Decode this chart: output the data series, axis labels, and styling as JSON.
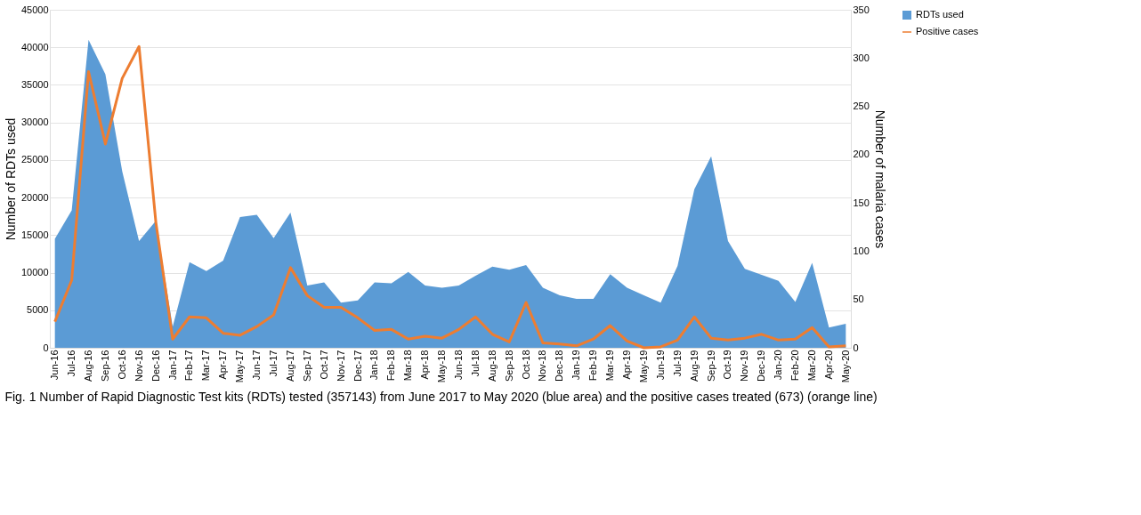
{
  "chart_data": {
    "type": "area",
    "ylabel": "Number of  RDTs used",
    "y2label": "Number of malaria cases",
    "categories": [
      "Jun-16",
      "Jul-16",
      "Aug-16",
      "Sep-16",
      "Oct-16",
      "Nov-16",
      "Dec-16",
      "Jan-17",
      "Feb-17",
      "Mar-17",
      "Apr-17",
      "May-17",
      "Jun-17",
      "Jul-17",
      "Aug-17",
      "Sep-17",
      "Oct-17",
      "Nov-17",
      "Dec-17",
      "Jan-18",
      "Feb-18",
      "Mar-18",
      "Apr-18",
      "May-18",
      "Jun-18",
      "Jul-18",
      "Aug-18",
      "Sep-18",
      "Oct-18",
      "Nov-18",
      "Dec-18",
      "Jan-19",
      "Feb-19",
      "Mar-19",
      "Apr-19",
      "May-19",
      "Jun-19",
      "Jul-19",
      "Aug-19",
      "Sep-19",
      "Oct-19",
      "Nov-19",
      "Dec-19",
      "Jan-20",
      "Feb-20",
      "Mar-20",
      "Apr-20",
      "May-20"
    ],
    "series": [
      {
        "name": "RDTs used",
        "color": "#5b9bd5",
        "values": [
          14500,
          18300,
          41000,
          36400,
          23500,
          14200,
          16900,
          2800,
          11400,
          10200,
          11600,
          17400,
          17700,
          14600,
          18000,
          8300,
          8700,
          6000,
          6300,
          8700,
          8600,
          10100,
          8300,
          8000,
          8300,
          9600,
          10800,
          10400,
          11000,
          8000,
          7000,
          6500,
          6500,
          9800,
          8000,
          7000,
          6000,
          10900,
          21100,
          25500,
          14200,
          10500,
          9700,
          8900,
          6100,
          11300,
          2700,
          3200
        ]
      },
      {
        "name": "Positive cases",
        "type": "line",
        "axis": "y2",
        "color": "#ed7d31",
        "values": [
          27,
          70,
          286,
          211,
          279,
          312,
          130,
          9,
          32,
          31,
          15,
          13,
          22,
          34,
          83,
          54,
          42,
          42,
          31,
          18,
          19,
          9,
          12,
          10,
          19,
          32,
          14,
          6,
          47,
          5,
          4,
          2,
          9,
          23,
          7,
          0,
          1,
          8,
          32,
          10,
          8,
          10,
          14,
          8,
          9,
          21,
          1,
          2
        ]
      }
    ],
    "ylim": [
      0,
      45000
    ],
    "yticks": [
      0,
      5000,
      10000,
      15000,
      20000,
      25000,
      30000,
      35000,
      40000,
      45000
    ],
    "y2lim": [
      0,
      350
    ],
    "y2ticks": [
      0,
      50,
      100,
      150,
      200,
      250,
      300,
      350
    ],
    "grid": "y",
    "legend": "right",
    "annotations": [
      "Fig. 1  Number of Rapid Diagnostic Test kits (RDTs) tested (357143) from June 2017 to May 2020 (blue area) and the positive cases treated (673) (orange line)"
    ]
  }
}
